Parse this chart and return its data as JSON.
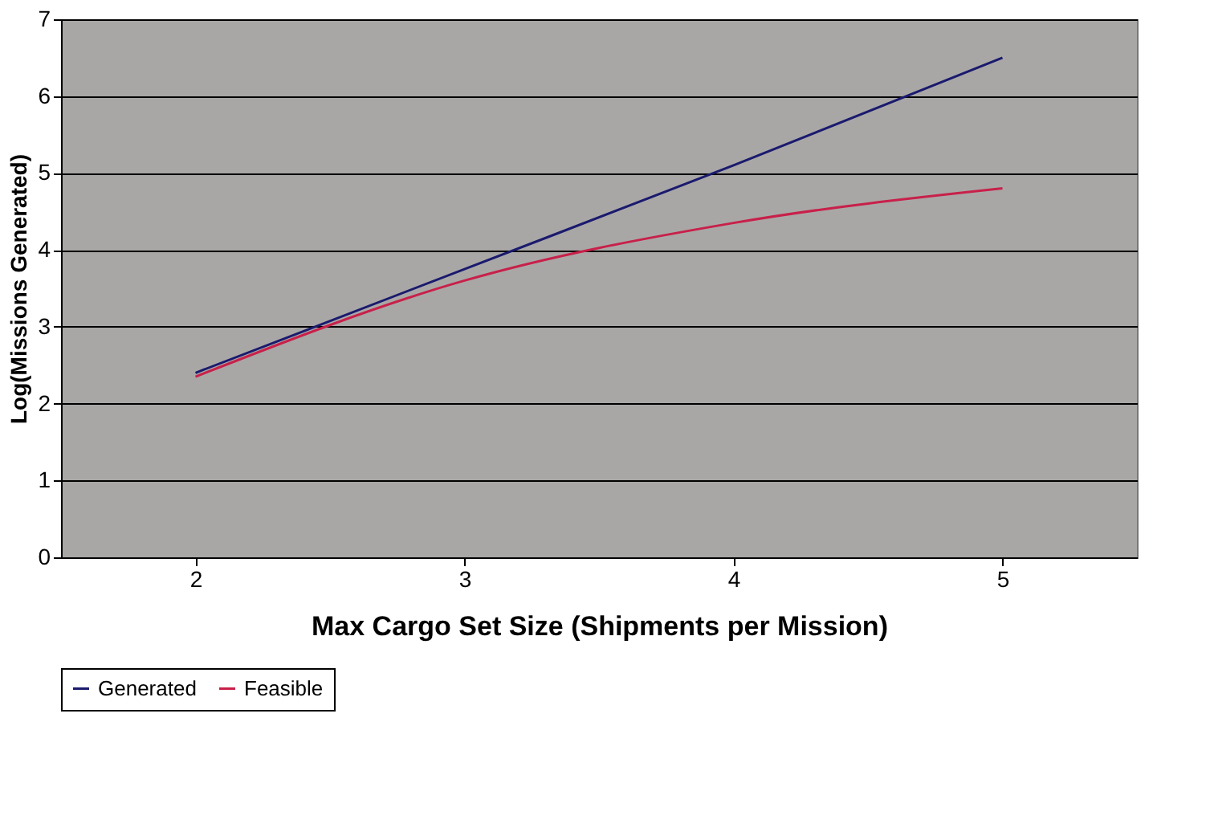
{
  "chart_data": {
    "type": "line",
    "xlabel": "Max Cargo Set Size (Shipments per Mission)",
    "ylabel": "Log(Missions Generated)",
    "categories": [
      "2",
      "3",
      "4",
      "5"
    ],
    "series": [
      {
        "name": "Generated",
        "color": "#1a1a6e",
        "values": [
          2.4,
          3.75,
          5.1,
          6.5
        ]
      },
      {
        "name": "Feasible",
        "color": "#c8204a",
        "values": [
          2.35,
          3.6,
          4.35,
          4.8
        ]
      }
    ],
    "ylim": [
      0,
      7
    ],
    "yticks": [
      0,
      1,
      2,
      3,
      4,
      5,
      6,
      7
    ],
    "grid": "y",
    "legend": "bottom",
    "marker": "none",
    "line_style": "solid"
  }
}
